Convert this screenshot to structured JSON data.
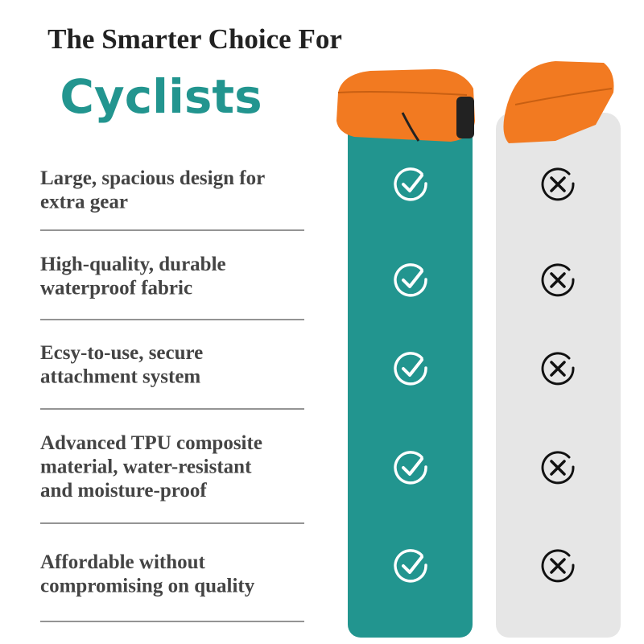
{
  "header": {
    "title": "The Smarter Choice For",
    "subtitle": "Cyclists"
  },
  "rows": [
    {
      "lines": [
        "Large, spacious design for",
        "extra gear"
      ]
    },
    {
      "lines": [
        "High-quality, durable",
        "waterproof fabric"
      ]
    },
    {
      "lines": [
        "Ecsy-to-use, secure",
        "attachment system"
      ]
    },
    {
      "lines": [
        "Advanced TPU composite",
        "material, water-resistant",
        "and moisture-proof"
      ]
    },
    {
      "lines": [
        "Affordable without",
        "compromising on quality"
      ]
    }
  ]
}
